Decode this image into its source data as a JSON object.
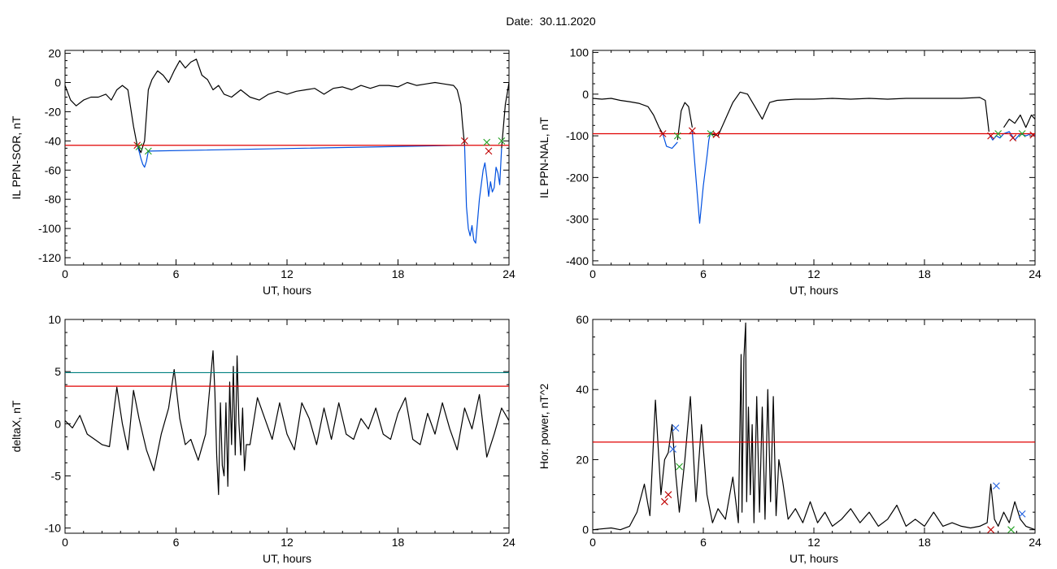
{
  "title": "Date:  30.11.2020",
  "chart_data": [
    {
      "type": "line",
      "ylabel": "IL PPN-SOR, nT",
      "xlabel": "UT, hours",
      "xlim": [
        0,
        24
      ],
      "ylim": [
        -125,
        22
      ],
      "xticks": [
        0,
        6,
        12,
        18,
        24
      ],
      "yticks": [
        20,
        0,
        -20,
        -40,
        -60,
        -80,
        -100,
        -120
      ],
      "hlines": [
        {
          "y": -43,
          "color": "#e00000"
        }
      ],
      "series": [
        {
          "color": "#000000",
          "x": [
            0,
            0.3,
            0.6,
            1,
            1.4,
            1.8,
            2.2,
            2.5,
            2.8,
            3.1,
            3.4,
            3.7,
            3.9,
            4.1,
            4.3,
            4.5,
            4.7,
            5,
            5.3,
            5.6,
            5.9,
            6.2,
            6.5,
            6.8,
            7.1,
            7.4,
            7.7,
            8,
            8.3,
            8.6,
            9,
            9.5,
            10,
            10.5,
            11,
            11.5,
            12,
            12.5,
            13,
            13.5,
            14,
            14.5,
            15,
            15.5,
            16,
            16.5,
            17,
            17.5,
            18,
            18.5,
            19,
            19.5,
            20,
            20.5,
            21,
            21.2,
            21.4,
            21.5,
            21.6
          ],
          "y": [
            -2,
            -12,
            -16,
            -12,
            -10,
            -10,
            -8,
            -12,
            -5,
            -2,
            -5,
            -30,
            -43,
            -48,
            -40,
            -5,
            2,
            8,
            5,
            0,
            8,
            15,
            10,
            14,
            16,
            5,
            2,
            -5,
            -2,
            -8,
            -10,
            -5,
            -10,
            -12,
            -8,
            -6,
            -8,
            -6,
            -5,
            -4,
            -8,
            -4,
            -3,
            -5,
            -2,
            -4,
            -2,
            -2,
            -3,
            0,
            -2,
            -1,
            0,
            -1,
            -2,
            -5,
            -15,
            -30,
            -43
          ]
        },
        {
          "color": "#0050e0",
          "x": [
            3.9,
            4.0,
            4.1,
            4.2,
            4.3,
            4.4,
            4.5,
            21.6,
            21.7,
            21.8,
            21.9,
            22.0,
            22.1,
            22.2,
            22.3,
            22.4,
            22.5,
            22.6,
            22.7,
            22.8,
            22.9,
            23.0,
            23.1,
            23.2,
            23.3,
            23.4,
            23.5,
            23.6
          ],
          "y": [
            -43,
            -47,
            -52,
            -56,
            -58,
            -54,
            -47,
            -43,
            -85,
            -100,
            -105,
            -98,
            -108,
            -110,
            -95,
            -80,
            -70,
            -60,
            -55,
            -65,
            -78,
            -68,
            -75,
            -72,
            -58,
            -62,
            -70,
            -45
          ]
        },
        {
          "color": "#000000",
          "x": [
            23.6,
            23.7,
            23.8,
            23.9,
            24
          ],
          "y": [
            -45,
            -30,
            -15,
            -8,
            0
          ]
        }
      ],
      "markers": [
        {
          "x": 3.9,
          "y": -43,
          "color": "#c00000"
        },
        {
          "x": 4.0,
          "y": -44,
          "color": "#20a020"
        },
        {
          "x": 4.5,
          "y": -47,
          "color": "#20a020"
        },
        {
          "x": 21.6,
          "y": -40,
          "color": "#c00000"
        },
        {
          "x": 22.8,
          "y": -41,
          "color": "#20a020"
        },
        {
          "x": 22.9,
          "y": -47,
          "color": "#c00000"
        },
        {
          "x": 23.6,
          "y": -40,
          "color": "#20a020"
        }
      ]
    },
    {
      "type": "line",
      "ylabel": "IL PPN-NAL, nT",
      "xlabel": "UT, hours",
      "xlim": [
        0,
        24
      ],
      "ylim": [
        -410,
        105
      ],
      "xticks": [
        0,
        6,
        12,
        18,
        24
      ],
      "yticks": [
        100,
        0,
        -100,
        -200,
        -300,
        -400
      ],
      "hlines": [
        {
          "y": -95,
          "color": "#e00000"
        }
      ],
      "series": [
        {
          "color": "#000000",
          "x": [
            0,
            0.5,
            1,
            1.5,
            2,
            2.5,
            3,
            3.3,
            3.6,
            3.8
          ],
          "y": [
            -10,
            -12,
            -10,
            -15,
            -18,
            -22,
            -30,
            -50,
            -80,
            -95
          ]
        },
        {
          "color": "#0050e0",
          "x": [
            3.8,
            4.0,
            4.3,
            4.6
          ],
          "y": [
            -95,
            -125,
            -130,
            -115
          ]
        },
        {
          "color": "#000000",
          "x": [
            4.6,
            4.8,
            5.0,
            5.2,
            5.4
          ],
          "y": [
            -110,
            -40,
            -20,
            -30,
            -80
          ]
        },
        {
          "color": "#0050e0",
          "x": [
            5.4,
            5.6,
            5.8,
            6.0,
            6.2,
            6.3,
            6.4
          ],
          "y": [
            -90,
            -200,
            -310,
            -220,
            -150,
            -110,
            -90
          ]
        },
        {
          "color": "#000000",
          "x": [
            6.4,
            6.8,
            7.2,
            7.6,
            8,
            8.4,
            8.8,
            9.2,
            9.6,
            10,
            11,
            12,
            13,
            14,
            15,
            16,
            17,
            18,
            19,
            20,
            21,
            21.3,
            21.5
          ],
          "y": [
            -95,
            -100,
            -60,
            -20,
            5,
            0,
            -30,
            -60,
            -20,
            -15,
            -12,
            -12,
            -10,
            -12,
            -10,
            -12,
            -10,
            -10,
            -10,
            -10,
            -8,
            -15,
            -90
          ]
        },
        {
          "color": "#0050e0",
          "x": [
            21.5,
            21.7,
            21.9,
            22.1,
            22.3,
            22.6,
            22.9,
            23.2,
            23.5,
            23.8,
            24
          ],
          "y": [
            -95,
            -110,
            -100,
            -105,
            -95,
            -90,
            -110,
            -95,
            -100,
            -95,
            -100
          ]
        },
        {
          "color": "#000000",
          "x": [
            22.3,
            22.6,
            22.9,
            23.2,
            23.5,
            23.8,
            24
          ],
          "y": [
            -80,
            -60,
            -70,
            -50,
            -80,
            -50,
            -60
          ]
        }
      ],
      "markers": [
        {
          "x": 3.8,
          "y": -95,
          "color": "#c00000"
        },
        {
          "x": 4.6,
          "y": -100,
          "color": "#20a020"
        },
        {
          "x": 5.4,
          "y": -88,
          "color": "#c00000"
        },
        {
          "x": 6.4,
          "y": -95,
          "color": "#20a020"
        },
        {
          "x": 6.7,
          "y": -97,
          "color": "#c00000"
        },
        {
          "x": 21.6,
          "y": -100,
          "color": "#c00000"
        },
        {
          "x": 22.0,
          "y": -95,
          "color": "#20a020"
        },
        {
          "x": 22.8,
          "y": -105,
          "color": "#c00000"
        },
        {
          "x": 23.3,
          "y": -95,
          "color": "#20a020"
        },
        {
          "x": 23.9,
          "y": -98,
          "color": "#c00000"
        }
      ]
    },
    {
      "type": "line",
      "ylabel": "deltaX, nT",
      "xlabel": "UT, hours",
      "xlim": [
        0,
        24
      ],
      "ylim": [
        -10.5,
        10
      ],
      "xticks": [
        0,
        6,
        12,
        18,
        24
      ],
      "yticks": [
        10,
        5,
        0,
        -5,
        -10
      ],
      "hlines": [
        {
          "y": 4.9,
          "color": "#008080"
        },
        {
          "y": 3.6,
          "color": "#e00000"
        }
      ],
      "series": [
        {
          "color": "#000000",
          "x": [
            0,
            0.4,
            0.8,
            1.2,
            1.6,
            2,
            2.4,
            2.8,
            3.1,
            3.4,
            3.7,
            4,
            4.4,
            4.8,
            5.2,
            5.6,
            5.9,
            6.2,
            6.5,
            6.8,
            7.2,
            7.6,
            8,
            8.1,
            8.2,
            8.3,
            8.4,
            8.5,
            8.6,
            8.7,
            8.8,
            8.9,
            9,
            9.1,
            9.2,
            9.3,
            9.4,
            9.5,
            9.6,
            9.7,
            9.8,
            10,
            10.4,
            10.8,
            11.2,
            11.6,
            12,
            12.4,
            12.8,
            13.2,
            13.6,
            14,
            14.4,
            14.8,
            15.2,
            15.6,
            16,
            16.4,
            16.8,
            17.2,
            17.6,
            18,
            18.4,
            18.8,
            19.2,
            19.6,
            20,
            20.4,
            20.8,
            21.2,
            21.6,
            22,
            22.4,
            22.8,
            23.2,
            23.6,
            24
          ],
          "y": [
            0.3,
            -0.4,
            0.8,
            -1,
            -1.5,
            -2,
            -2.2,
            3.5,
            0,
            -2.5,
            3.2,
            0.5,
            -2.5,
            -4.5,
            -1,
            1.5,
            5.2,
            0.5,
            -2,
            -1.5,
            -3.5,
            -1,
            7,
            3,
            -3,
            -6.8,
            2,
            -4,
            -5,
            2,
            -6,
            4,
            -2,
            5.5,
            -3,
            6.5,
            0,
            -3,
            1.5,
            -4.5,
            -2,
            -2,
            2.5,
            0.5,
            -1.5,
            2,
            -1,
            -2.5,
            2,
            0.5,
            -2,
            1.5,
            -1.5,
            2,
            -1,
            -1.5,
            0.5,
            -0.5,
            1.5,
            -1,
            -1.5,
            1,
            2.5,
            -1.5,
            -2,
            1,
            -1,
            2,
            -0.5,
            -2.5,
            1.5,
            -0.5,
            2.8,
            -3.2,
            -1,
            1.5,
            0.3
          ]
        }
      ],
      "markers": []
    },
    {
      "type": "line",
      "ylabel": "Hor. power, nT^2",
      "xlabel": "UT, hours",
      "xlim": [
        0,
        24
      ],
      "ylim": [
        -1,
        60
      ],
      "xticks": [
        0,
        6,
        12,
        18,
        24
      ],
      "yticks": [
        60,
        40,
        20,
        0
      ],
      "hlines": [
        {
          "y": 25,
          "color": "#e00000"
        }
      ],
      "series": [
        {
          "color": "#000000",
          "x": [
            0,
            1,
            1.5,
            2,
            2.4,
            2.8,
            3.1,
            3.4,
            3.7,
            3.9,
            4.1,
            4.3,
            4.5,
            4.7,
            5,
            5.3,
            5.6,
            5.9,
            6.2,
            6.5,
            6.8,
            7.2,
            7.6,
            7.9,
            8.05,
            8.1,
            8.2,
            8.3,
            8.35,
            8.45,
            8.55,
            8.65,
            8.75,
            8.9,
            9.05,
            9.2,
            9.35,
            9.5,
            9.65,
            9.8,
            9.95,
            10.1,
            10.3,
            10.6,
            11,
            11.4,
            11.8,
            12.2,
            12.6,
            13,
            13.5,
            14,
            14.5,
            15,
            15.5,
            16,
            16.5,
            17,
            17.5,
            18,
            18.5,
            19,
            19.5,
            20,
            20.5,
            21,
            21.4,
            21.6,
            21.8,
            22,
            22.3,
            22.6,
            22.9,
            23.2,
            23.5,
            24
          ],
          "y": [
            0,
            0.5,
            0,
            1,
            5,
            13,
            4,
            37,
            10,
            20,
            22,
            30,
            16,
            5,
            20,
            38,
            8,
            30,
            10,
            2,
            6,
            3,
            15,
            2,
            50,
            5,
            49,
            59,
            8,
            35,
            10,
            30,
            2,
            38,
            5,
            35,
            3,
            40,
            8,
            38,
            4,
            20,
            14,
            3,
            6,
            2,
            8,
            2,
            5,
            1,
            3,
            6,
            2,
            5,
            1,
            3,
            7,
            1,
            3,
            1,
            5,
            1,
            2,
            1,
            0.5,
            1,
            2,
            13,
            3,
            1,
            5,
            2,
            8,
            3,
            1,
            0
          ]
        }
      ],
      "markers": [
        {
          "x": 3.9,
          "y": 8,
          "color": "#c00000"
        },
        {
          "x": 4.1,
          "y": 10,
          "color": "#c00000"
        },
        {
          "x": 4.35,
          "y": 23,
          "color": "#2060e0"
        },
        {
          "x": 4.5,
          "y": 29,
          "color": "#2060e0"
        },
        {
          "x": 4.7,
          "y": 18,
          "color": "#20a020"
        },
        {
          "x": 21.6,
          "y": 0,
          "color": "#c00000"
        },
        {
          "x": 21.9,
          "y": 12.5,
          "color": "#2060e0"
        },
        {
          "x": 22.7,
          "y": 0,
          "color": "#20a020"
        },
        {
          "x": 23.3,
          "y": 4.5,
          "color": "#2060e0"
        }
      ]
    }
  ]
}
